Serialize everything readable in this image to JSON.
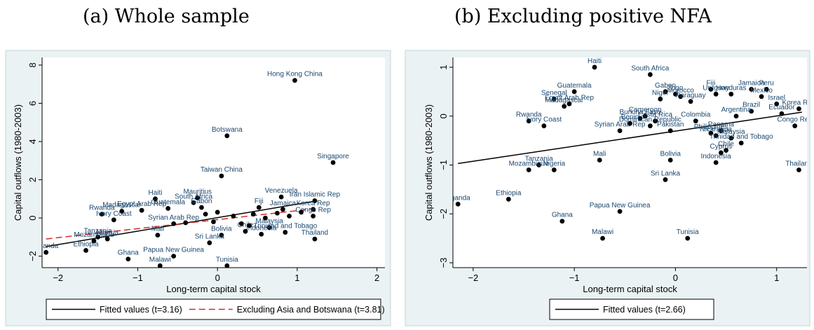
{
  "panel_titles": [
    "(a) Whole sample",
    "(b) Excluding positive NFA"
  ],
  "colors": {
    "frame_bg": "#eaf2f3",
    "plot_bg": "#ffffff",
    "point": "#000000",
    "label": "#1a476f",
    "fit": "#000000",
    "fit_excl": "#d52a2a"
  },
  "chart_data": [
    {
      "type": "scatter",
      "title": "(a) Whole sample",
      "xlabel": "Long-term capital stock",
      "ylabel": "Capital outflows (1980-2003)",
      "xlim": [
        -2.2,
        2.1
      ],
      "ylim": [
        -2.6,
        8.4
      ],
      "xticks": [
        -2,
        -1,
        0,
        1,
        2
      ],
      "yticks": [
        -2,
        0,
        2,
        4,
        6,
        8
      ],
      "grid": false,
      "legend_position": "bottom",
      "points": [
        {
          "x": 0.97,
          "y": 7.2,
          "label": "Hong Kong China"
        },
        {
          "x": 0.12,
          "y": 4.3,
          "label": "Botswana"
        },
        {
          "x": 1.45,
          "y": 2.9,
          "label": "Singapore"
        },
        {
          "x": 0.05,
          "y": 2.2,
          "label": "Taiwan China"
        },
        {
          "x": 0.8,
          "y": 1.1,
          "label": "Venezuela"
        },
        {
          "x": 1.22,
          "y": 0.9,
          "label": "Iran Islamic Rep"
        },
        {
          "x": -0.78,
          "y": 1.0,
          "label": "Haiti"
        },
        {
          "x": -0.25,
          "y": 1.05,
          "label": "Mauritius"
        },
        {
          "x": -0.3,
          "y": 0.8,
          "label": "South Africa"
        },
        {
          "x": -0.62,
          "y": 0.5,
          "label": "Guatemala"
        },
        {
          "x": -0.2,
          "y": 0.55,
          "label": "Gabon"
        },
        {
          "x": 0.52,
          "y": 0.55,
          "label": "Fiji"
        },
        {
          "x": 0.82,
          "y": 0.45,
          "label": "Jamaica"
        },
        {
          "x": 1.2,
          "y": 0.45,
          "label": "Korea Rep"
        },
        {
          "x": -1.45,
          "y": 0.2,
          "label": "Rwanda"
        },
        {
          "x": -1.2,
          "y": 0.35,
          "label": "Madagascar"
        },
        {
          "x": -0.95,
          "y": 0.4,
          "label": "Egypt Arab Rep"
        },
        {
          "x": -1.3,
          "y": -0.1,
          "label": "Ivory Coast"
        },
        {
          "x": -0.55,
          "y": -0.3,
          "label": "Syrian Arab Rep"
        },
        {
          "x": -0.75,
          "y": -0.9,
          "label": "Mali"
        },
        {
          "x": 1.2,
          "y": 0.1,
          "label": "Congo Rep"
        },
        {
          "x": 0.65,
          "y": -0.5,
          "label": "Malaysia"
        },
        {
          "x": 0.85,
          "y": -0.75,
          "label": "Trinidad and Tobago"
        },
        {
          "x": 0.55,
          "y": -0.85,
          "label": "Indonesia"
        },
        {
          "x": 1.22,
          "y": -1.1,
          "label": "Thailand"
        },
        {
          "x": 0.05,
          "y": -0.9,
          "label": "Bolivia"
        },
        {
          "x": -0.1,
          "y": -1.3,
          "label": "Sri Lanka"
        },
        {
          "x": 0.35,
          "y": -0.7,
          "label": "Chile"
        },
        {
          "x": -1.5,
          "y": -1.0,
          "label": "Tanzania"
        },
        {
          "x": -1.55,
          "y": -1.2,
          "label": "Mozambique"
        },
        {
          "x": -1.38,
          "y": -1.1,
          "label": "Nigeria"
        },
        {
          "x": -2.15,
          "y": -1.8,
          "label": "Uganda"
        },
        {
          "x": -1.65,
          "y": -1.7,
          "label": "Ethiopia"
        },
        {
          "x": -1.12,
          "y": -2.15,
          "label": "Ghana"
        },
        {
          "x": -0.55,
          "y": -2.0,
          "label": "Papua New Guinea"
        },
        {
          "x": -0.72,
          "y": -2.5,
          "label": "Malawi"
        },
        {
          "x": 0.12,
          "y": -2.5,
          "label": "Tunisia"
        },
        {
          "x": -0.4,
          "y": -0.25,
          "label": ""
        },
        {
          "x": -0.15,
          "y": 0.2,
          "label": ""
        },
        {
          "x": 0.0,
          "y": 0.3,
          "label": ""
        },
        {
          "x": 0.2,
          "y": 0.1,
          "label": ""
        },
        {
          "x": 0.3,
          "y": -0.3,
          "label": ""
        },
        {
          "x": 0.45,
          "y": 0.2,
          "label": ""
        },
        {
          "x": 0.6,
          "y": 0.0,
          "label": ""
        },
        {
          "x": 0.75,
          "y": 0.25,
          "label": ""
        },
        {
          "x": 0.9,
          "y": 0.1,
          "label": ""
        },
        {
          "x": 1.05,
          "y": 0.3,
          "label": ""
        },
        {
          "x": 0.4,
          "y": -0.4,
          "label": ""
        },
        {
          "x": -0.05,
          "y": -0.2,
          "label": ""
        }
      ],
      "fit_lines": [
        {
          "name": "Fitted values (t=3.16)",
          "style": "solid",
          "color": "#000000",
          "x": [
            -2.15,
            1.25
          ],
          "y": [
            -1.5,
            0.9
          ]
        },
        {
          "name": "Excluding Asia and Botswana (t=3.81)",
          "style": "dashed",
          "color": "#d52a2a",
          "x": [
            -2.15,
            1.25
          ],
          "y": [
            -1.1,
            0.5
          ]
        }
      ],
      "legend": [
        "Fitted values (t=3.16)",
        "Excluding Asia and Botswana (t=3.81)"
      ]
    },
    {
      "type": "scatter",
      "title": "(b) Excluding positive NFA",
      "xlabel": "Long-term capital stock",
      "ylabel": "Capital outflows (1980-2003)",
      "xlim": [
        -2.2,
        1.3
      ],
      "ylim": [
        -3.1,
        1.2
      ],
      "xticks": [
        -2,
        -1,
        0,
        1
      ],
      "yticks": [
        -3,
        -2,
        -1,
        0,
        1
      ],
      "grid": false,
      "legend_position": "bottom",
      "points": [
        {
          "x": -0.8,
          "y": 1.0,
          "label": "Haiti"
        },
        {
          "x": -0.25,
          "y": 0.85,
          "label": "South Africa"
        },
        {
          "x": -1.0,
          "y": 0.5,
          "label": "Guatemala"
        },
        {
          "x": -1.2,
          "y": 0.35,
          "label": "Senegal"
        },
        {
          "x": -1.1,
          "y": 0.2,
          "label": "Madagascar"
        },
        {
          "x": -1.05,
          "y": 0.25,
          "label": "Egypt Arab Rep"
        },
        {
          "x": -0.1,
          "y": 0.5,
          "label": "Gabon"
        },
        {
          "x": 0.0,
          "y": 0.45,
          "label": "Togo"
        },
        {
          "x": -0.15,
          "y": 0.35,
          "label": "Niger"
        },
        {
          "x": 0.05,
          "y": 0.4,
          "label": "Morocco"
        },
        {
          "x": 0.15,
          "y": 0.3,
          "label": "Paraguay"
        },
        {
          "x": 0.35,
          "y": 0.55,
          "label": "Fiji"
        },
        {
          "x": 0.4,
          "y": 0.45,
          "label": "Uruguay"
        },
        {
          "x": 0.55,
          "y": 0.45,
          "label": "Honduras"
        },
        {
          "x": 0.75,
          "y": 0.55,
          "label": "Jamaica"
        },
        {
          "x": 0.9,
          "y": 0.55,
          "label": "Peru"
        },
        {
          "x": 0.85,
          "y": 0.4,
          "label": "Mexico"
        },
        {
          "x": 1.0,
          "y": 0.25,
          "label": "Israel"
        },
        {
          "x": 1.22,
          "y": 0.15,
          "label": "Korea Rep"
        },
        {
          "x": 1.05,
          "y": 0.05,
          "label": "Ecuador"
        },
        {
          "x": 0.75,
          "y": 0.1,
          "label": "Brazil"
        },
        {
          "x": 0.6,
          "y": 0.0,
          "label": "Argentina"
        },
        {
          "x": 1.18,
          "y": -0.2,
          "label": "Congo Rep"
        },
        {
          "x": -1.45,
          "y": -0.1,
          "label": "Rwanda"
        },
        {
          "x": -1.3,
          "y": -0.2,
          "label": "Ivory Coast"
        },
        {
          "x": -0.55,
          "y": -0.3,
          "label": "Syrian Arab Rep"
        },
        {
          "x": -0.3,
          "y": 0.0,
          "label": "Cameroon"
        },
        {
          "x": -0.35,
          "y": -0.05,
          "label": "Burkina Faso"
        },
        {
          "x": -0.45,
          "y": -0.15,
          "label": "Benin"
        },
        {
          "x": -0.2,
          "y": -0.1,
          "label": "Costa Rica"
        },
        {
          "x": -0.25,
          "y": -0.2,
          "label": "Dominican Republic"
        },
        {
          "x": -0.05,
          "y": -0.3,
          "label": "Pakistan"
        },
        {
          "x": 0.2,
          "y": -0.1,
          "label": "Colombia"
        },
        {
          "x": 0.35,
          "y": -0.35,
          "label": "Philippines"
        },
        {
          "x": 0.45,
          "y": -0.3,
          "label": "Panama"
        },
        {
          "x": 0.4,
          "y": -0.4,
          "label": "Nicaragua"
        },
        {
          "x": 0.55,
          "y": -0.45,
          "label": "Malaysia"
        },
        {
          "x": 0.65,
          "y": -0.55,
          "label": "Trinidad and Tobago"
        },
        {
          "x": 0.5,
          "y": -0.7,
          "label": "Chile"
        },
        {
          "x": 0.45,
          "y": -0.75,
          "label": "Cyprus"
        },
        {
          "x": 0.4,
          "y": -0.95,
          "label": "Indonesia"
        },
        {
          "x": 1.22,
          "y": -1.1,
          "label": "Thailand"
        },
        {
          "x": -0.75,
          "y": -0.9,
          "label": "Mali"
        },
        {
          "x": -0.05,
          "y": -0.9,
          "label": "Bolivia"
        },
        {
          "x": -0.1,
          "y": -1.3,
          "label": "Sri Lanka"
        },
        {
          "x": -1.35,
          "y": -1.0,
          "label": "Tanzania"
        },
        {
          "x": -1.45,
          "y": -1.1,
          "label": "Mozambique"
        },
        {
          "x": -1.2,
          "y": -1.1,
          "label": "Nigeria"
        },
        {
          "x": -2.15,
          "y": -1.8,
          "label": "Uganda"
        },
        {
          "x": -1.65,
          "y": -1.7,
          "label": "Ethiopia"
        },
        {
          "x": -1.12,
          "y": -2.15,
          "label": "Ghana"
        },
        {
          "x": -0.55,
          "y": -1.95,
          "label": "Papua New Guinea"
        },
        {
          "x": -0.72,
          "y": -2.5,
          "label": "Malawi"
        },
        {
          "x": 0.12,
          "y": -2.5,
          "label": "Tunisia"
        }
      ],
      "fit_lines": [
        {
          "name": "Fitted values (t=2.66)",
          "style": "solid",
          "color": "#000000",
          "x": [
            -2.15,
            1.25
          ],
          "y": [
            -0.97,
            0.08
          ]
        }
      ],
      "legend": [
        "Fitted values (t=2.66)"
      ]
    }
  ]
}
